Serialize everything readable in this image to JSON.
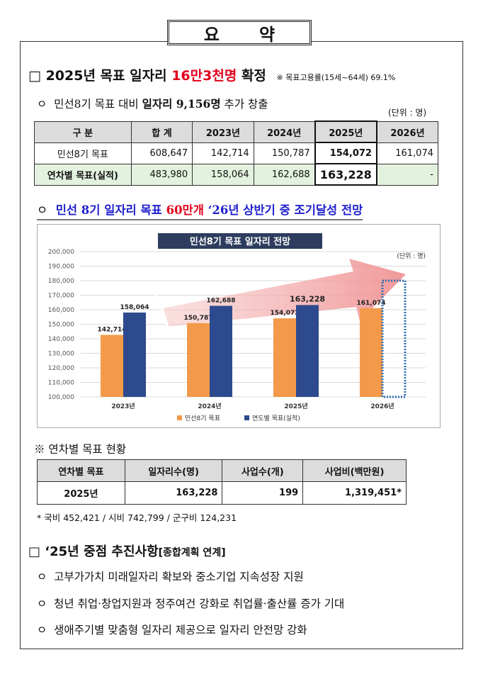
{
  "title": "요약",
  "section1": {
    "bullet": "□",
    "heading_a": "2025년 목표 일자리",
    "heading_highlight": "16만3천명",
    "heading_b": "확정",
    "note": "※ 목표고용률(15세~64세) 69.1%"
  },
  "sub1": {
    "bullet": "ㅇ",
    "text_a": "민선8기 목표 대비",
    "text_bold": "일자리 9,156명",
    "text_b": "추가 창출"
  },
  "unit": "(단위 : 명)",
  "table1": {
    "headers": [
      "구 분",
      "합 계",
      "2023년",
      "2024년",
      "2025년",
      "2026년"
    ],
    "rows": [
      [
        "민선8기 목표",
        "608,647",
        "142,714",
        "150,787",
        "154,072",
        "161,074"
      ],
      [
        "연차별 목표(실적)",
        "483,980",
        "158,064",
        "162,688",
        "163,228",
        "-"
      ]
    ]
  },
  "sub2": {
    "bullet": "ㅇ",
    "text_a": "민선 8기 일자리 목표",
    "text_red": "60만개",
    "text_b": "‘26년 상반기 중 조기달성 전망"
  },
  "chart_data": {
    "type": "bar",
    "title": "민선8기 목표 일자리 전망",
    "unit_label": "(단위 : 명)",
    "categories": [
      "2023년",
      "2024년",
      "2025년",
      "2026년"
    ],
    "series": [
      {
        "name": "민선8기 목표",
        "color": "#f29a4a",
        "values": [
          142714,
          150787,
          154072,
          161074
        ]
      },
      {
        "name": "연도별 목표(실적)",
        "color": "#2e4a8e",
        "values": [
          158064,
          162688,
          163228,
          null
        ]
      }
    ],
    "data_labels": {
      "s0": [
        "142,714",
        "150,787",
        "154,072",
        "161,074"
      ],
      "s1": [
        "158,064",
        "162,688",
        "163,228",
        ""
      ]
    },
    "projected": {
      "category": "2026년",
      "value": 180000
    },
    "y_ticks": [
      "200,000",
      "190,000",
      "180,000",
      "170,000",
      "160,000",
      "150,000",
      "140,000",
      "130,000",
      "120,000",
      "110,000",
      "100,000"
    ],
    "ylim": [
      100000,
      200000
    ],
    "grid": true,
    "legend": "bottom"
  },
  "note2": "※ 연차별 목표 현황",
  "table2": {
    "headers": [
      "연차별 목표",
      "일자리수(명)",
      "사업수(개)",
      "사업비(백만원)"
    ],
    "row": [
      "2025년",
      "163,228",
      "199",
      "1,319,451*"
    ]
  },
  "footnote": "* 국비 452,421 / 시비 742,799 / 군구비 124,231",
  "section2": {
    "bullet": "□",
    "heading": "‘25년 중점 추진사항",
    "heading_small": "[종합계획 연계]"
  },
  "items": [
    "고부가가치 미래일자리 확보와 중소기업 지속성장 지원",
    "청년 취업·창업지원과 정주여건 강화로 취업률·출산률 증가 기대",
    "생애주기별 맞춤형 일자리 제공으로 일자리 안전망 강화"
  ],
  "item_bullet": "ㅇ"
}
